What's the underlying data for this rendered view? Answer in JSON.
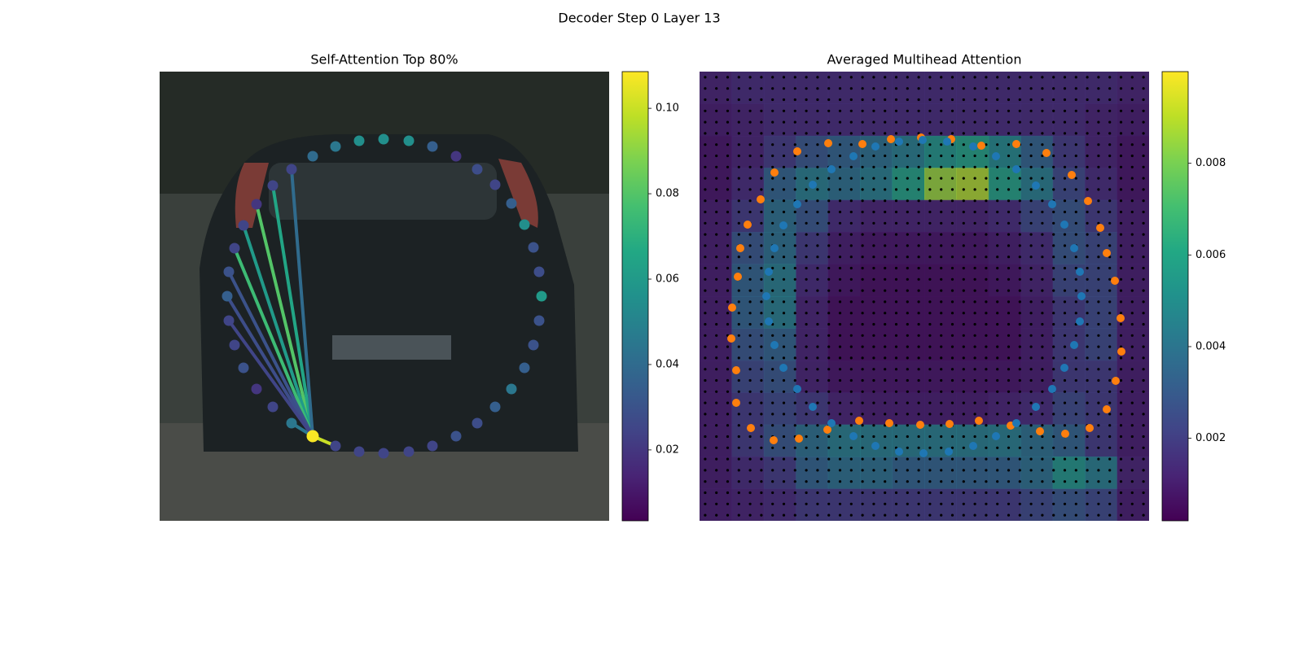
{
  "title": "Decoder Step 0 Layer 13",
  "chart_data": [
    {
      "type": "attention-scatter",
      "title": "Self-Attention Top 80%",
      "xlim": [
        0,
        552
      ],
      "ylim": [
        552,
        0
      ],
      "clim": [
        0.0034,
        0.1086
      ],
      "cticks": [
        0.02,
        0.04,
        0.06,
        0.08,
        {
          "value": 0.1,
          "label": "0.10"
        }
      ],
      "query": {
        "x": 188,
        "y": 448,
        "value": 0.108
      },
      "points": {
        "x": [
          216,
          245,
          275,
          306,
          335,
          364,
          390,
          412,
          432,
          448,
          459,
          466,
          469,
          466,
          459,
          448,
          432,
          412,
          390,
          364,
          335,
          306,
          275,
          245,
          216,
          188,
          162,
          139,
          119,
          103,
          92,
          85,
          83,
          85,
          92,
          103,
          119,
          139,
          162
        ],
        "y": [
          460,
          467,
          469,
          467,
          460,
          448,
          432,
          412,
          390,
          364,
          336,
          306,
          276,
          246,
          216,
          188,
          162,
          139,
          120,
          104,
          92,
          85,
          83,
          85,
          92,
          104,
          120,
          140,
          163,
          189,
          217,
          246,
          276,
          306,
          336,
          364,
          390,
          412,
          432
        ],
        "values": [
          0.025,
          0.025,
          0.025,
          0.025,
          0.025,
          0.03,
          0.028,
          0.035,
          0.045,
          0.035,
          0.03,
          0.03,
          0.06,
          0.028,
          0.03,
          0.055,
          0.035,
          0.025,
          0.028,
          0.02,
          0.035,
          0.055,
          0.055,
          0.055,
          0.045,
          0.04,
          0.025,
          0.025,
          0.02,
          0.025,
          0.025,
          0.03,
          0.035,
          0.025,
          0.025,
          0.03,
          0.02,
          0.025,
          0.045
        ]
      },
      "links": {
        "x": [
          216,
          119,
          139,
          103,
          92,
          162,
          85,
          83,
          162,
          85
        ],
        "y": [
          460,
          163,
          140,
          189,
          217,
          120,
          246,
          276,
          432,
          306
        ],
        "values": [
          0.1,
          0.08,
          0.065,
          0.06,
          0.075,
          0.04,
          0.03,
          0.028,
          0.045,
          0.025
        ]
      }
    },
    {
      "type": "heatmap",
      "title": "Averaged Multihead Attention",
      "xlim": [
        0,
        552
      ],
      "ylim": [
        552,
        0
      ],
      "clim": [
        0.0002,
        0.01
      ],
      "cticks": [
        0.002,
        0.004,
        0.006,
        0.008
      ],
      "heatmap": {
        "values": [
          [
            0.0012,
            0.0015,
            0.0015,
            0.0015,
            0.0015,
            0.0015,
            0.0015,
            0.0015,
            0.0015,
            0.0015,
            0.0015,
            0.0015,
            0.0015,
            0.0012
          ],
          [
            0.001,
            0.0012,
            0.0015,
            0.0015,
            0.0015,
            0.0015,
            0.0015,
            0.0015,
            0.0015,
            0.0015,
            0.0015,
            0.0015,
            0.0012,
            0.001
          ],
          [
            0.0008,
            0.0012,
            0.002,
            0.003,
            0.0035,
            0.004,
            0.0045,
            0.0055,
            0.006,
            0.005,
            0.0035,
            0.002,
            0.0012,
            0.0008
          ],
          [
            0.0008,
            0.0015,
            0.0035,
            0.0045,
            0.004,
            0.0045,
            0.006,
            0.0085,
            0.0088,
            0.006,
            0.0045,
            0.0025,
            0.0015,
            0.0008
          ],
          [
            0.001,
            0.002,
            0.004,
            0.003,
            0.0015,
            0.0012,
            0.0012,
            0.0012,
            0.0012,
            0.0015,
            0.0025,
            0.003,
            0.002,
            0.001
          ],
          [
            0.001,
            0.003,
            0.004,
            0.002,
            0.001,
            0.0008,
            0.0008,
            0.0008,
            0.0008,
            0.001,
            0.0015,
            0.003,
            0.0025,
            0.001
          ],
          [
            0.001,
            0.0035,
            0.0045,
            0.0015,
            0.0008,
            0.0006,
            0.0006,
            0.0006,
            0.0006,
            0.0008,
            0.0012,
            0.0025,
            0.0025,
            0.001
          ],
          [
            0.001,
            0.0035,
            0.0045,
            0.0012,
            0.0006,
            0.0006,
            0.0006,
            0.0006,
            0.0006,
            0.0006,
            0.001,
            0.002,
            0.0025,
            0.001
          ],
          [
            0.001,
            0.003,
            0.0035,
            0.0012,
            0.0006,
            0.0006,
            0.0006,
            0.0006,
            0.0006,
            0.0006,
            0.001,
            0.002,
            0.0025,
            0.001
          ],
          [
            0.001,
            0.0025,
            0.003,
            0.0012,
            0.0008,
            0.0008,
            0.0008,
            0.0008,
            0.0008,
            0.0008,
            0.001,
            0.002,
            0.002,
            0.001
          ],
          [
            0.001,
            0.002,
            0.0025,
            0.002,
            0.0012,
            0.001,
            0.001,
            0.001,
            0.001,
            0.0012,
            0.0015,
            0.0025,
            0.002,
            0.001
          ],
          [
            0.001,
            0.002,
            0.003,
            0.004,
            0.0045,
            0.0045,
            0.0045,
            0.0045,
            0.0045,
            0.0045,
            0.004,
            0.0035,
            0.002,
            0.001
          ],
          [
            0.001,
            0.0015,
            0.002,
            0.0035,
            0.004,
            0.004,
            0.0035,
            0.0035,
            0.0035,
            0.0035,
            0.004,
            0.0055,
            0.0045,
            0.0012
          ],
          [
            0.001,
            0.0012,
            0.0015,
            0.002,
            0.002,
            0.002,
            0.002,
            0.002,
            0.002,
            0.002,
            0.0025,
            0.003,
            0.0025,
            0.001
          ]
        ]
      },
      "series": [
        {
          "color": "#ff7f0e",
          "x": [
            120,
            158,
            200,
            235,
            272,
            309,
            346,
            389,
            426,
            457,
            477,
            492,
            500,
            510,
            517,
            518,
            511,
            500,
            479,
            449,
            418,
            382,
            343,
            307,
            271,
            233,
            196,
            157,
            122,
            91,
            63,
            45,
            45,
            39,
            40,
            47,
            50,
            59,
            75,
            92
          ],
          "y": [
            98,
            88,
            89,
            83,
            81,
            83,
            91,
            89,
            100,
            127,
            159,
            192,
            223,
            257,
            303,
            344,
            380,
            415,
            438,
            445,
            442,
            435,
            429,
            433,
            434,
            432,
            429,
            440,
            451,
            453,
            438,
            407,
            367,
            328,
            290,
            252,
            217,
            188,
            157,
            124
          ]
        },
        {
          "color": "#1f77b4",
          "x": [
            162,
            189,
            216,
            245,
            274,
            304,
            336,
            364,
            389,
            413,
            433,
            448,
            460,
            467,
            469,
            467,
            460,
            448,
            433,
            413,
            389,
            364,
            336,
            306,
            275,
            245,
            216,
            189,
            162,
            139,
            120,
            103,
            92,
            85,
            82,
            85,
            92,
            103,
            120,
            139
          ],
          "y": [
            120,
            104,
            92,
            86,
            84,
            86,
            92,
            104,
            120,
            140,
            163,
            188,
            217,
            246,
            276,
            307,
            336,
            364,
            390,
            412,
            432,
            448,
            460,
            467,
            469,
            467,
            460,
            448,
            432,
            412,
            390,
            364,
            336,
            307,
            276,
            246,
            217,
            189,
            163,
            139
          ]
        }
      ]
    }
  ]
}
